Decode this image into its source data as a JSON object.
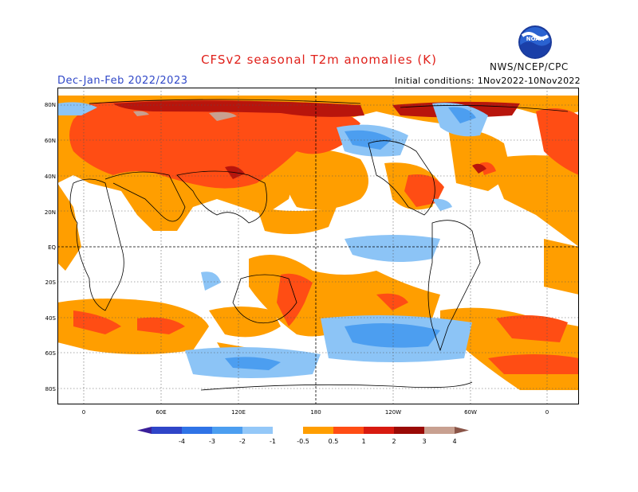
{
  "header": {
    "title": "CFSv2 seasonal T2m anomalies (K)",
    "period": "Dec-Jan-Feb 2022/2023",
    "initial_conditions": "Initial conditions: 1Nov2022-10Nov2022",
    "agency": "NWS/NCEP/CPC",
    "logo_text": "NOAA"
  },
  "map": {
    "lat_labels": [
      "80N",
      "60N",
      "40N",
      "20N",
      "EQ",
      "20S",
      "40S",
      "60S",
      "80S"
    ],
    "lon_labels": [
      "0",
      "60E",
      "120E",
      "180",
      "120W",
      "60W",
      "0"
    ]
  },
  "legend": {
    "ticks": [
      "-4",
      "-3",
      "-2",
      "-1",
      "-0.5",
      "0.5",
      "1",
      "2",
      "3",
      "4"
    ],
    "colors": [
      "#3a1f9a",
      "#2f45c8",
      "#2f73e6",
      "#4c9ef0",
      "#94c8f8",
      "#ffffff",
      "#ff9e00",
      "#ff4d14",
      "#d81a10",
      "#9a0a06",
      "#c8a090",
      "#8a5548"
    ]
  }
}
